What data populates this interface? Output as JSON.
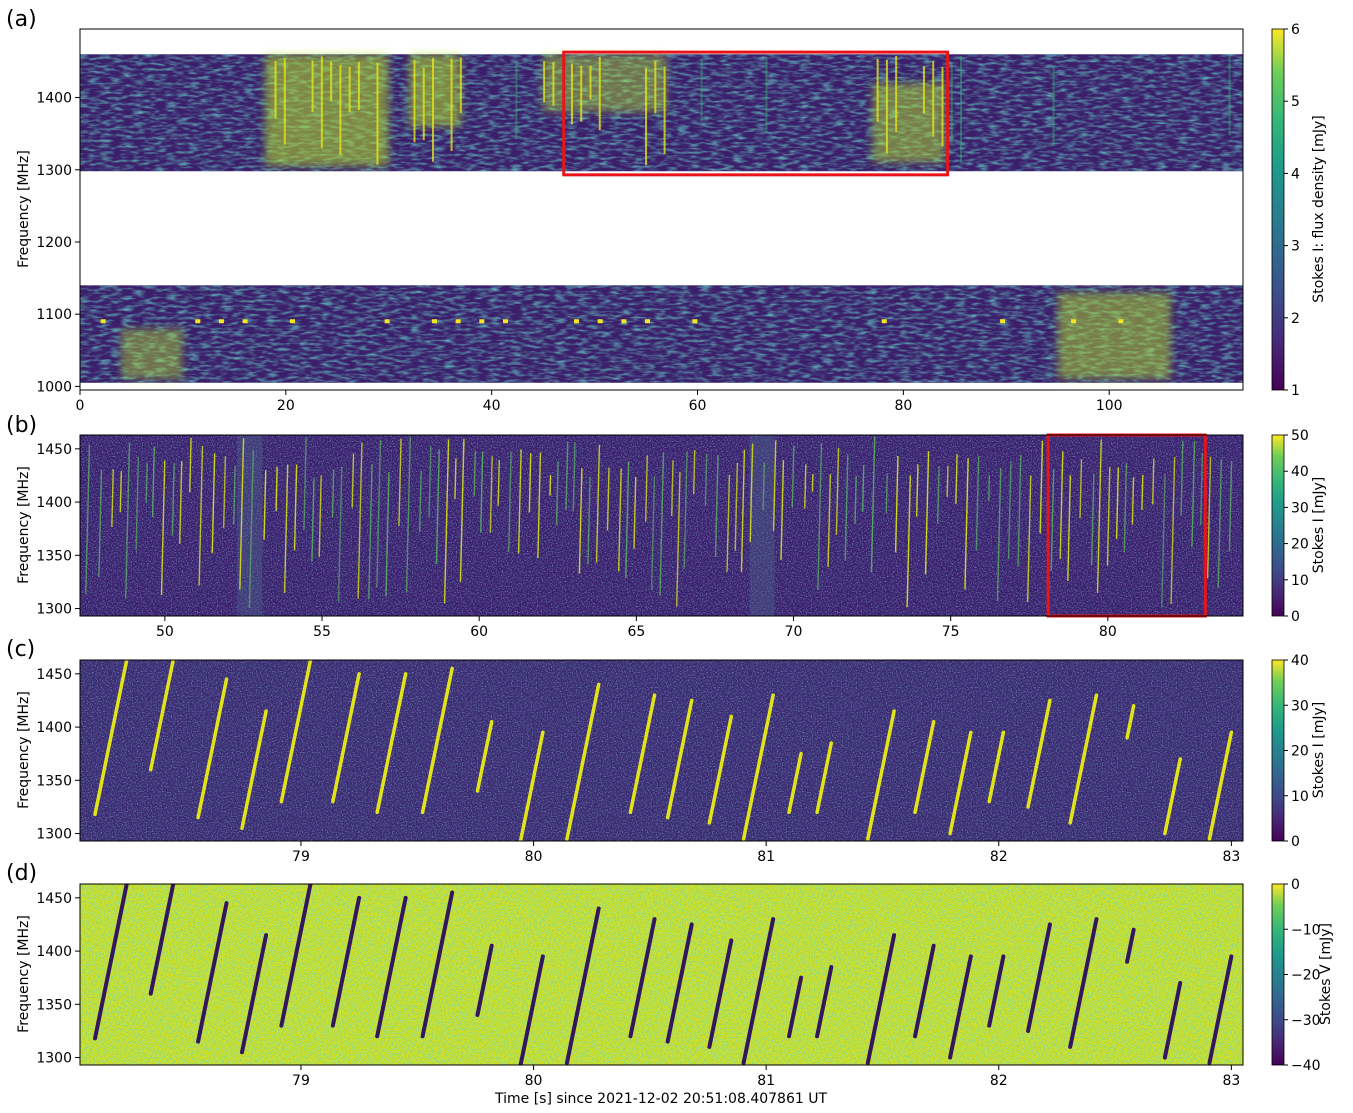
{
  "chart_data": [
    {
      "id": "a",
      "type": "heatmap",
      "panel_label": "(a)",
      "ylabel": "Frequency [MHz]",
      "xlabel": "",
      "xlim": [
        0,
        113
      ],
      "ylim": [
        995,
        1495
      ],
      "data_bands": [
        [
          1005,
          1140
        ],
        [
          1298,
          1460
        ]
      ],
      "xticks": [
        0,
        20,
        40,
        60,
        80,
        100
      ],
      "yticks": [
        1000,
        1100,
        1200,
        1300,
        1400
      ],
      "colorbar": {
        "label": "Stokes I: flux density [mJy]",
        "min": 1,
        "max": 6,
        "ticks": [
          1,
          2,
          3,
          4,
          5,
          6
        ]
      },
      "highlight_box": {
        "x": [
          47,
          84.3
        ],
        "y": [
          1293,
          1463
        ],
        "color": "#e8141a"
      },
      "features": [
        {
          "x": [
            18,
            30
          ],
          "y": [
            1305,
            1460
          ],
          "strength": 1
        },
        {
          "x": [
            32,
            37
          ],
          "y": [
            1360,
            1460
          ],
          "strength": 1
        },
        {
          "x": [
            45,
            57
          ],
          "y": [
            1380,
            1460
          ],
          "strength": 0.8
        },
        {
          "x": [
            77,
            84
          ],
          "y": [
            1310,
            1420
          ],
          "strength": 0.9
        },
        {
          "x": [
            95,
            106
          ],
          "y": [
            1010,
            1130
          ],
          "strength": 0.9
        },
        {
          "x": [
            4,
            10
          ],
          "y": [
            1010,
            1080
          ],
          "strength": 0.8
        }
      ]
    },
    {
      "id": "b",
      "type": "heatmap",
      "panel_label": "(b)",
      "ylabel": "Frequency [MHz]",
      "xlabel": "",
      "xlim": [
        47.3,
        84.3
      ],
      "ylim": [
        1293,
        1463
      ],
      "xticks": [
        50,
        55,
        60,
        65,
        70,
        75,
        80
      ],
      "yticks": [
        1300,
        1350,
        1400,
        1450
      ],
      "colorbar": {
        "label": "Stokes I [mJy]",
        "min": 0,
        "max": 50,
        "ticks": [
          0,
          10,
          20,
          30,
          40,
          50
        ]
      },
      "highlight_box": {
        "x": [
          78.1,
          83.1
        ],
        "y": [
          1293,
          1463
        ],
        "color": "#e8141a"
      }
    },
    {
      "id": "c",
      "type": "heatmap",
      "panel_label": "(c)",
      "ylabel": "Frequency [MHz]",
      "xlabel": "",
      "xlim": [
        78.05,
        83.05
      ],
      "ylim": [
        1293,
        1463
      ],
      "xticks": [
        79,
        80,
        81,
        82,
        83
      ],
      "yticks": [
        1300,
        1350,
        1400,
        1450
      ],
      "colorbar": {
        "label": "Stokes I [mJy]",
        "min": 0,
        "max": 40,
        "ticks": [
          0,
          10,
          20,
          30,
          40
        ]
      }
    },
    {
      "id": "d",
      "type": "heatmap",
      "panel_label": "(d)",
      "ylabel": "Frequency [MHz]",
      "xlabel": "Time [s] since 2021-12-02 20:51:08.407861 UT",
      "xlim": [
        78.05,
        83.05
      ],
      "ylim": [
        1293,
        1463
      ],
      "xticks": [
        79,
        80,
        81,
        82,
        83
      ],
      "yticks": [
        1300,
        1350,
        1400,
        1450
      ],
      "colorbar": {
        "label": "Stokes V [mJy]",
        "min": -40,
        "max": 0,
        "ticks": [
          -40,
          -30,
          -20,
          -10,
          0
        ],
        "tick_labels": [
          "−40",
          "−30",
          "−20",
          "−10",
          "0"
        ]
      }
    }
  ],
  "zoom_bursts": [
    {
      "t_top": 78.25,
      "f_top": 1462,
      "f_bot": 1318
    },
    {
      "t_top": 78.45,
      "f_top": 1462,
      "f_bot": 1360
    },
    {
      "t_top": 78.68,
      "f_top": 1445,
      "f_bot": 1315
    },
    {
      "t_top": 78.85,
      "f_top": 1415,
      "f_bot": 1305
    },
    {
      "t_top": 79.04,
      "f_top": 1462,
      "f_bot": 1330
    },
    {
      "t_top": 79.25,
      "f_top": 1450,
      "f_bot": 1330
    },
    {
      "t_top": 79.45,
      "f_top": 1450,
      "f_bot": 1320
    },
    {
      "t_top": 79.65,
      "f_top": 1455,
      "f_bot": 1320
    },
    {
      "t_top": 79.82,
      "f_top": 1405,
      "f_bot": 1340
    },
    {
      "t_top": 80.04,
      "f_top": 1395,
      "f_bot": 1293
    },
    {
      "t_top": 80.28,
      "f_top": 1440,
      "f_bot": 1295
    },
    {
      "t_top": 80.52,
      "f_top": 1430,
      "f_bot": 1320
    },
    {
      "t_top": 80.68,
      "f_top": 1425,
      "f_bot": 1315
    },
    {
      "t_top": 80.85,
      "f_top": 1410,
      "f_bot": 1310
    },
    {
      "t_top": 81.03,
      "f_top": 1430,
      "f_bot": 1295
    },
    {
      "t_top": 81.15,
      "f_top": 1375,
      "f_bot": 1320
    },
    {
      "t_top": 81.28,
      "f_top": 1385,
      "f_bot": 1320
    },
    {
      "t_top": 81.55,
      "f_top": 1415,
      "f_bot": 1295
    },
    {
      "t_top": 81.72,
      "f_top": 1405,
      "f_bot": 1320
    },
    {
      "t_top": 81.88,
      "f_top": 1395,
      "f_bot": 1300
    },
    {
      "t_top": 82.02,
      "f_top": 1395,
      "f_bot": 1330
    },
    {
      "t_top": 82.22,
      "f_top": 1425,
      "f_bot": 1325
    },
    {
      "t_top": 82.42,
      "f_top": 1430,
      "f_bot": 1310
    },
    {
      "t_top": 82.58,
      "f_top": 1420,
      "f_bot": 1390
    },
    {
      "t_top": 82.78,
      "f_top": 1370,
      "f_bot": 1300
    },
    {
      "t_top": 83.0,
      "f_top": 1395,
      "f_bot": 1295
    }
  ]
}
